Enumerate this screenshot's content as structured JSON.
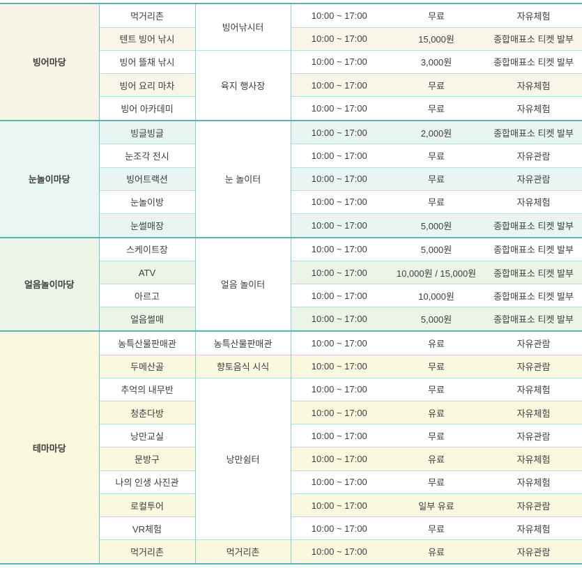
{
  "colors": {
    "section_border_teal": "#57b5b1",
    "row_border_teal": "#b5e0dd",
    "column_border_teal": "#8ccfcb",
    "text": "#3e3e3e",
    "tint_cream": "#faf5e9",
    "tint_mint": "#e8f5f3",
    "tint_green": "#ecf4e7",
    "tint_yellow": "#fbf8e0"
  },
  "table": {
    "sections": [
      {
        "category": "빙어마당",
        "locations": [
          "빙어낚시터",
          "육지 행사장"
        ],
        "rows": [
          {
            "program": "먹거리촌",
            "time": "10:00 ~ 17:00",
            "price": "무료",
            "note": "자유체험"
          },
          {
            "program": "텐트 빙어 낚시",
            "time": "10:00 ~ 17:00",
            "price": "15,000원",
            "note": "종합매표소 티켓 발부"
          },
          {
            "program": "빙어 뜰채 낚시",
            "time": "10:00 ~ 17:00",
            "price": "3,000원",
            "note": "종합매표소 티켓 발부"
          },
          {
            "program": "빙어 요리 마차",
            "time": "10:00 ~ 17:00",
            "price": "무료",
            "note": "자유체험"
          },
          {
            "program": "빙어 아카데미",
            "time": "10:00 ~ 17:00",
            "price": "무료",
            "note": "자유체험"
          }
        ]
      },
      {
        "category": "눈놀이마당",
        "locations": [
          "눈 놀이터"
        ],
        "rows": [
          {
            "program": "빙글빙글",
            "time": "10:00 ~ 17:00",
            "price": "2,000원",
            "note": "종합매표소 티켓 발부"
          },
          {
            "program": "눈조각 전시",
            "time": "10:00 ~ 17:00",
            "price": "무료",
            "note": "자유관람"
          },
          {
            "program": "빙어트랙션",
            "time": "10:00 ~ 17:00",
            "price": "무료",
            "note": "자유관람"
          },
          {
            "program": "눈놀이방",
            "time": "10:00 ~ 17:00",
            "price": "무료",
            "note": "자유체험"
          },
          {
            "program": "눈썰매장",
            "time": "10:00 ~ 17:00",
            "price": "5,000원",
            "note": "종합매표소 티켓 발부"
          }
        ]
      },
      {
        "category": "얼음놀이마당",
        "locations": [
          "얼음 놀이터"
        ],
        "rows": [
          {
            "program": "스케이트장",
            "time": "10:00 ~ 17:00",
            "price": "5,000원",
            "note": "종합매표소 티켓 발부"
          },
          {
            "program": "ATV",
            "time": "10:00 ~ 17:00",
            "price": "10,000원 / 15,000원",
            "note": "종합매표소 티켓 발부"
          },
          {
            "program": "아르고",
            "time": "10:00 ~ 17:00",
            "price": "10,000원",
            "note": "종합매표소 티켓 발부"
          },
          {
            "program": "얼음썰매",
            "time": "10:00 ~ 17:00",
            "price": "5,000원",
            "note": "종합매표소 티켓 발부"
          }
        ]
      },
      {
        "category": "테마마당",
        "locations": [
          "농특산물판매관",
          "향토음식 시식",
          "낭만쉼터",
          "먹거리촌"
        ],
        "rows": [
          {
            "program": "농특산물판매관",
            "time": "10:00 ~ 17:00",
            "price": "유료",
            "note": "자유관람"
          },
          {
            "program": "두메산골",
            "time": "10:00 ~ 17:00",
            "price": "무료",
            "note": "자유관람"
          },
          {
            "program": "추억의 내무반",
            "time": "10:00 ~ 17:00",
            "price": "무료",
            "note": "자유체험"
          },
          {
            "program": "청춘다방",
            "time": "10:00 ~ 17:00",
            "price": "유료",
            "note": "자유체험"
          },
          {
            "program": "낭만교실",
            "time": "10:00 ~ 17:00",
            "price": "무료",
            "note": "자유관람"
          },
          {
            "program": "문방구",
            "time": "10:00 ~ 17:00",
            "price": "유료",
            "note": "자유체험"
          },
          {
            "program": "나의 인생 사진관",
            "time": "10:00 ~ 17:00",
            "price": "무료",
            "note": "자유체험"
          },
          {
            "program": "로컬투어",
            "time": "10:00 ~ 17:00",
            "price": "일부 유료",
            "note": "자유관람"
          },
          {
            "program": "VR체험",
            "time": "10:00 ~ 17:00",
            "price": "무료",
            "note": "자유체험"
          },
          {
            "program": "먹거리촌",
            "time": "10:00 ~ 17:00",
            "price": "유료",
            "note": "자유관람"
          }
        ]
      }
    ]
  }
}
